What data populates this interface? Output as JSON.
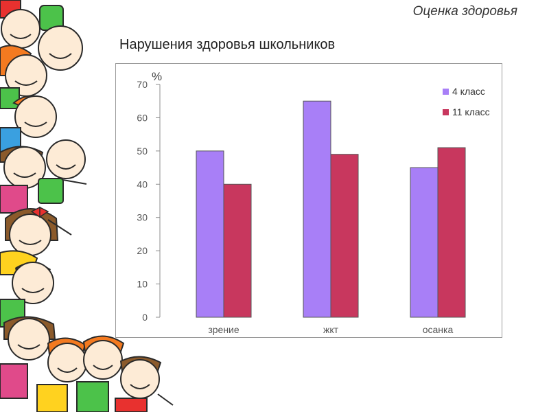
{
  "header": {
    "title": "Оценка здоровья"
  },
  "slide": {
    "title": "Нарушения здоровья школьников"
  },
  "chart_data": {
    "type": "bar",
    "title": "",
    "xlabel": "",
    "ylabel": "%",
    "ylim": [
      0,
      70
    ],
    "yticks": [
      0,
      10,
      20,
      30,
      40,
      50,
      60,
      70
    ],
    "categories": [
      "зрение",
      "жкт",
      "осанка"
    ],
    "series": [
      {
        "name": "4 класс",
        "color": "#a87ff7",
        "values": [
          50,
          65,
          45
        ]
      },
      {
        "name": "11 класс",
        "color": "#c8375e",
        "values": [
          40,
          49,
          51
        ]
      }
    ],
    "legend_position": "top-right",
    "grid": false
  },
  "decoration": {
    "icon": "cartoon-children-border-icon"
  }
}
